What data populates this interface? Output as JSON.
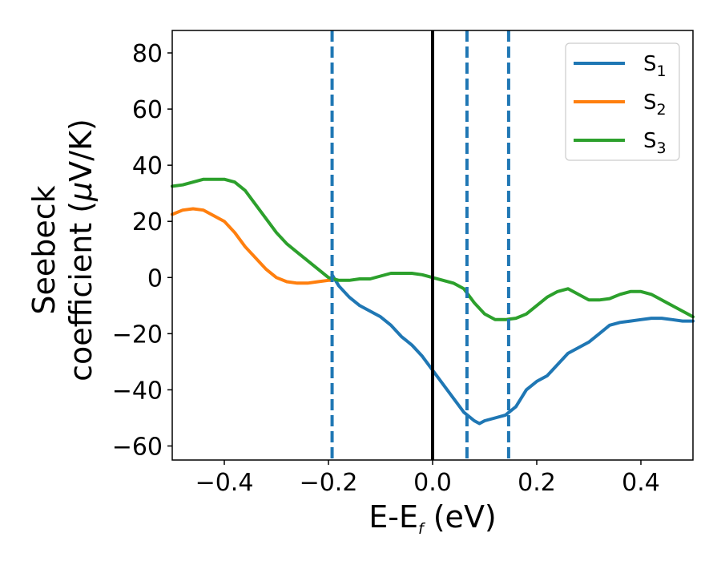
{
  "chart_data": {
    "type": "line",
    "title": "",
    "xlabel": "E-E",
    "xlabel_sub": "f",
    "xlabel_unit": " (eV)",
    "ylabel_line1": "Seebeck",
    "ylabel_line2": "coefficient  (",
    "ylabel_mu": "μ",
    "ylabel_unit": "V/K)",
    "xlim": [
      -0.5,
      0.5
    ],
    "ylim": [
      -65,
      88
    ],
    "xticks": [
      -0.4,
      -0.2,
      0.0,
      0.2,
      0.4
    ],
    "xtick_labels": [
      "−0.4",
      "−0.2",
      "0.0",
      "0.2",
      "0.4"
    ],
    "yticks": [
      -60,
      -40,
      -20,
      0,
      20,
      40,
      60,
      80
    ],
    "ytick_labels": [
      "−60",
      "−40",
      "−20",
      "0",
      "20",
      "40",
      "60",
      "80"
    ],
    "grid": false,
    "legend_position": "top-right",
    "vertical_lines": [
      {
        "x": 0.0,
        "style": "solid",
        "color": "#000000"
      },
      {
        "x": -0.193,
        "style": "dashed",
        "color": "#1f77b4"
      },
      {
        "x": 0.066,
        "style": "dashed",
        "color": "#1f77b4"
      },
      {
        "x": 0.146,
        "style": "dashed",
        "color": "#1f77b4"
      }
    ],
    "series": [
      {
        "name": "S",
        "sub": "1",
        "color": "#1f77b4",
        "x": [
          -0.193,
          -0.18,
          -0.16,
          -0.14,
          -0.12,
          -0.1,
          -0.08,
          -0.06,
          -0.04,
          -0.02,
          0.0,
          0.02,
          0.04,
          0.06,
          0.08,
          0.09,
          0.1,
          0.12,
          0.14,
          0.16,
          0.18,
          0.2,
          0.22,
          0.24,
          0.26,
          0.28,
          0.3,
          0.32,
          0.34,
          0.36,
          0.38,
          0.4,
          0.42,
          0.44,
          0.46,
          0.48,
          0.5
        ],
        "y": [
          1,
          -3,
          -7,
          -10,
          -12,
          -14,
          -17,
          -21,
          -24,
          -28,
          -33,
          -38,
          -43,
          -48,
          -51,
          -52,
          -51,
          -50,
          -49,
          -46,
          -40,
          -37,
          -35,
          -31,
          -27,
          -25,
          -23,
          -20,
          -17,
          -16,
          -15.5,
          -15,
          -14.5,
          -14.5,
          -15,
          -15.5,
          -15.5
        ]
      },
      {
        "name": "S",
        "sub": "2",
        "color": "#ff7f0e",
        "x": [
          -0.5,
          -0.48,
          -0.46,
          -0.44,
          -0.42,
          -0.4,
          -0.38,
          -0.36,
          -0.34,
          -0.32,
          -0.3,
          -0.28,
          -0.26,
          -0.24,
          -0.22,
          -0.2,
          -0.193
        ],
        "y": [
          22.5,
          24,
          24.5,
          24,
          22,
          20,
          16,
          11,
          7,
          3,
          0,
          -1.5,
          -2,
          -2,
          -1.5,
          -1,
          -1
        ]
      },
      {
        "name": "S",
        "sub": "3",
        "color": "#2ca02c",
        "x": [
          -0.5,
          -0.48,
          -0.46,
          -0.44,
          -0.42,
          -0.4,
          -0.38,
          -0.36,
          -0.34,
          -0.32,
          -0.3,
          -0.28,
          -0.26,
          -0.24,
          -0.22,
          -0.2,
          -0.18,
          -0.16,
          -0.14,
          -0.12,
          -0.1,
          -0.08,
          -0.06,
          -0.04,
          -0.02,
          0.0,
          0.02,
          0.04,
          0.06,
          0.08,
          0.1,
          0.12,
          0.14,
          0.16,
          0.18,
          0.2,
          0.22,
          0.24,
          0.26,
          0.28,
          0.3,
          0.32,
          0.34,
          0.36,
          0.38,
          0.4,
          0.42,
          0.44,
          0.46,
          0.48,
          0.5
        ],
        "y": [
          32.5,
          33,
          34,
          35,
          35,
          35,
          34,
          31,
          26,
          21,
          16,
          12,
          9,
          6,
          3,
          0,
          -1,
          -1,
          -0.5,
          -0.5,
          0.5,
          1.5,
          1.5,
          1.5,
          1,
          0,
          -1,
          -2,
          -4,
          -9,
          -13,
          -15,
          -15,
          -14.5,
          -13,
          -10,
          -7,
          -5,
          -4,
          -6,
          -8,
          -8,
          -7.5,
          -6,
          -5,
          -5,
          -6,
          -8,
          -10,
          -12,
          -14
        ]
      }
    ]
  }
}
